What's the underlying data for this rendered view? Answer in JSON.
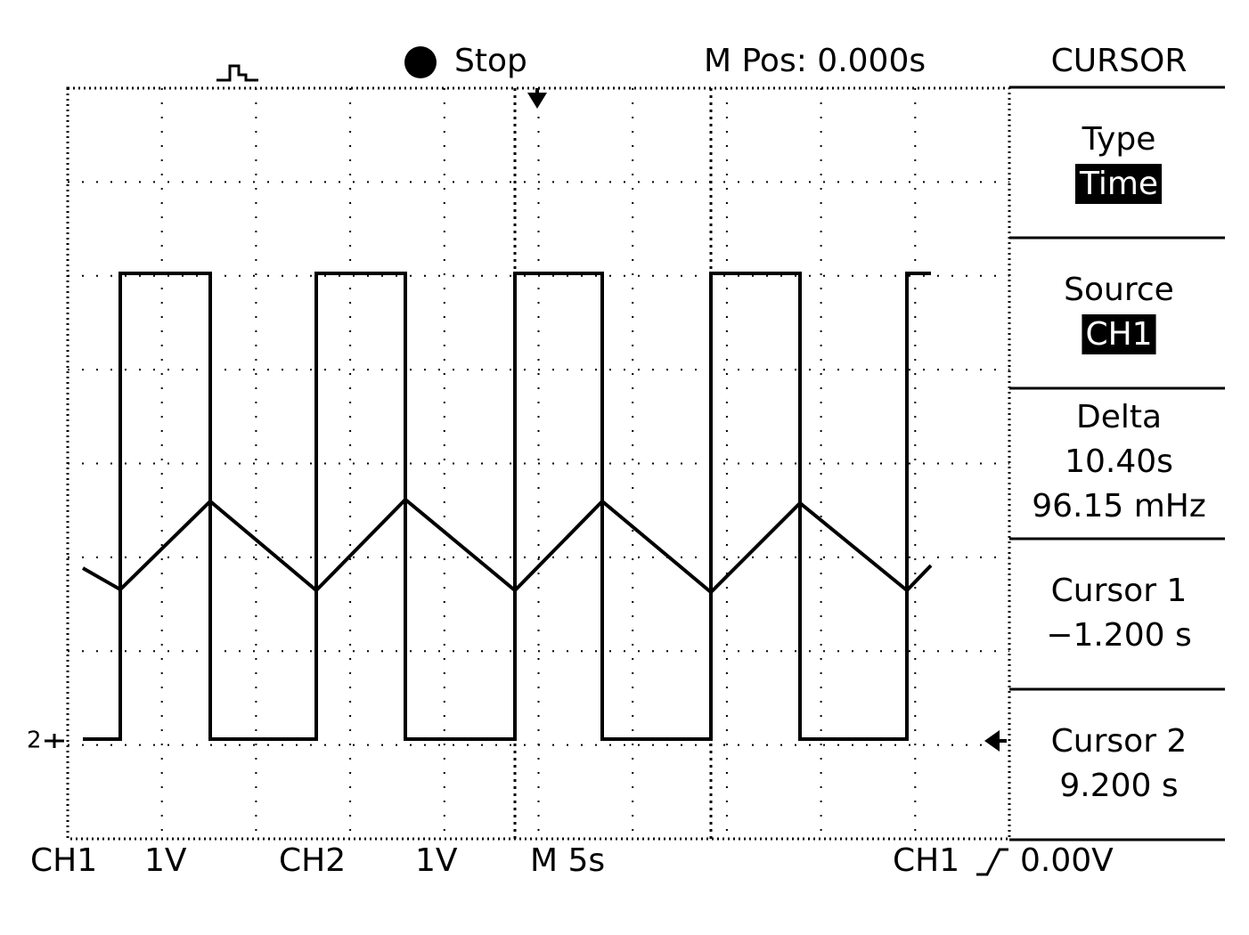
{
  "header": {
    "status": "Stop",
    "position": "M Pos: 0.000s"
  },
  "menu": {
    "title": "CURSOR",
    "items": [
      {
        "label": "Type",
        "value": "Time"
      },
      {
        "label": "Source",
        "value": "CH1"
      },
      {
        "label": "Delta",
        "lines": [
          "10.40s",
          "96.15 mHz"
        ]
      },
      {
        "label": "Cursor 1",
        "value": "−1.200 s"
      },
      {
        "label": "Cursor 2",
        "value": "9.200 s"
      }
    ]
  },
  "markers": {
    "ch2": "2"
  },
  "footer": {
    "ch1": "CH1",
    "ch1_scale": "1V",
    "ch2": "CH2",
    "ch2_scale": "1V",
    "timebase": "M 5s",
    "trigger_source": "CH1",
    "trigger_level": "0.00V"
  }
}
